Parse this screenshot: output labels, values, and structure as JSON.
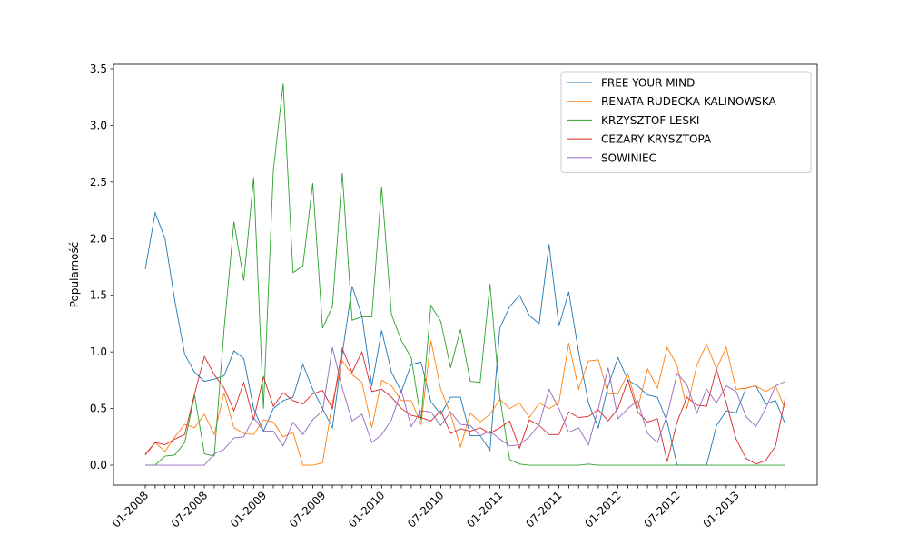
{
  "chart_data": {
    "type": "line",
    "y_label": "Popularność",
    "categories": [
      "01-2008",
      null,
      null,
      null,
      null,
      null,
      "07-2008",
      null,
      null,
      null,
      null,
      null,
      "01-2009",
      null,
      null,
      null,
      null,
      null,
      "07-2009",
      null,
      null,
      null,
      null,
      null,
      "01-2010",
      null,
      null,
      null,
      null,
      null,
      "07-2010",
      null,
      null,
      null,
      null,
      null,
      "01-2011",
      null,
      null,
      null,
      null,
      null,
      "07-2011",
      null,
      null,
      null,
      null,
      null,
      "01-2012",
      null,
      null,
      null,
      null,
      null,
      "07-2012",
      null,
      null,
      null,
      null,
      null,
      "01-2013",
      null,
      null,
      null,
      null,
      null
    ],
    "ylim": [
      -0.176,
      3.54
    ],
    "yticks": [
      {
        "value": 0,
        "label": "0.0"
      },
      0.5,
      {
        "value": 1,
        "label": "1.0"
      },
      1.5,
      {
        "value": 2,
        "label": "2.0"
      },
      2.5,
      {
        "value": 3,
        "label": "3.0"
      },
      3.5
    ],
    "legend": "upper right",
    "series": [
      {
        "name": "FREE YOUR MIND",
        "color": "#1f77b4",
        "values": [
          1.73,
          2.23,
          2.0,
          1.45,
          0.98,
          0.82,
          0.74,
          0.76,
          0.79,
          1.01,
          0.94,
          0.5,
          0.3,
          0.5,
          0.57,
          0.6,
          0.89,
          0.67,
          0.5,
          0.33,
          0.98,
          1.58,
          1.32,
          0.7,
          1.19,
          0.82,
          0.65,
          0.89,
          0.91,
          0.56,
          0.45,
          0.6,
          0.6,
          0.26,
          0.26,
          0.13,
          1.21,
          1.4,
          1.5,
          1.32,
          1.25,
          1.95,
          1.23,
          1.53,
          1.0,
          0.55,
          0.33,
          0.7,
          0.95,
          0.75,
          0.7,
          0.62,
          0.6,
          0.38,
          0.0,
          0.0,
          0.0,
          0.0,
          0.35,
          0.48,
          0.46,
          0.68,
          0.7,
          0.54,
          0.57,
          0.36
        ]
      },
      {
        "name": "RENATA RUDECKA-KALINOWSKA",
        "color": "#ff7f0e",
        "values": [
          0.1,
          0.2,
          0.12,
          0.25,
          0.36,
          0.33,
          0.45,
          0.27,
          0.64,
          0.33,
          0.28,
          0.27,
          0.4,
          0.38,
          0.25,
          0.29,
          0.0,
          0.0,
          0.02,
          0.55,
          0.92,
          0.8,
          0.73,
          0.33,
          0.75,
          0.7,
          0.57,
          0.57,
          0.36,
          1.1,
          0.67,
          0.45,
          0.16,
          0.46,
          0.38,
          0.45,
          0.58,
          0.5,
          0.55,
          0.42,
          0.55,
          0.5,
          0.55,
          1.08,
          0.67,
          0.92,
          0.93,
          0.63,
          0.63,
          0.81,
          0.5,
          0.85,
          0.68,
          1.04,
          0.88,
          0.5,
          0.88,
          1.07,
          0.85,
          1.04,
          0.67,
          0.68,
          0.7,
          0.65,
          0.7,
          0.49
        ]
      },
      {
        "name": "KRZYSZTOF LESKI",
        "color": "#2ca02c",
        "values": [
          0.0,
          0.0,
          0.08,
          0.09,
          0.2,
          0.62,
          0.1,
          0.08,
          1.2,
          2.15,
          1.63,
          2.54,
          0.5,
          2.6,
          3.37,
          1.7,
          1.76,
          2.49,
          1.21,
          1.4,
          2.58,
          1.28,
          1.31,
          1.31,
          2.46,
          1.33,
          1.1,
          0.95,
          0.4,
          1.41,
          1.27,
          0.86,
          1.2,
          0.74,
          0.73,
          1.6,
          0.6,
          0.05,
          0.01,
          0.0,
          0.0,
          0.0,
          0.0,
          0.0,
          0.0,
          0.01,
          0.0,
          0.0,
          0.0,
          0.0,
          0.0,
          0.0,
          0.0,
          0.0,
          0.0,
          0.0,
          0.0,
          0.0,
          0.0,
          0.0,
          0.0,
          0.0,
          0.0,
          0.0,
          0.0,
          0.0
        ]
      },
      {
        "name": "CEZARY KRYSZTOPA",
        "color": "#d62728",
        "values": [
          0.09,
          0.2,
          0.18,
          0.23,
          0.27,
          0.63,
          0.96,
          0.8,
          0.68,
          0.48,
          0.73,
          0.4,
          0.78,
          0.52,
          0.64,
          0.57,
          0.54,
          0.63,
          0.66,
          0.5,
          1.03,
          0.82,
          1.0,
          0.65,
          0.67,
          0.6,
          0.5,
          0.44,
          0.42,
          0.39,
          0.48,
          0.28,
          0.32,
          0.3,
          0.33,
          0.28,
          0.33,
          0.39,
          0.15,
          0.4,
          0.35,
          0.27,
          0.27,
          0.47,
          0.42,
          0.43,
          0.49,
          0.39,
          0.5,
          0.75,
          0.47,
          0.38,
          0.41,
          0.03,
          0.38,
          0.6,
          0.53,
          0.52,
          0.85,
          0.55,
          0.23,
          0.06,
          0.01,
          0.04,
          0.17,
          0.6
        ]
      },
      {
        "name": "SOWINIEC",
        "color": "#9467bd",
        "values": [
          0.0,
          0.0,
          0.0,
          0.0,
          0.0,
          0.0,
          0.0,
          0.1,
          0.14,
          0.24,
          0.25,
          0.42,
          0.3,
          0.3,
          0.17,
          0.38,
          0.27,
          0.4,
          0.48,
          1.04,
          0.68,
          0.39,
          0.45,
          0.2,
          0.27,
          0.4,
          0.66,
          0.34,
          0.48,
          0.47,
          0.35,
          0.47,
          0.36,
          0.35,
          0.26,
          0.3,
          0.23,
          0.17,
          0.18,
          0.25,
          0.36,
          0.67,
          0.5,
          0.29,
          0.33,
          0.18,
          0.5,
          0.86,
          0.41,
          0.5,
          0.57,
          0.28,
          0.2,
          0.44,
          0.81,
          0.71,
          0.46,
          0.67,
          0.55,
          0.7,
          0.65,
          0.43,
          0.34,
          0.5,
          0.7,
          0.74
        ]
      }
    ]
  }
}
